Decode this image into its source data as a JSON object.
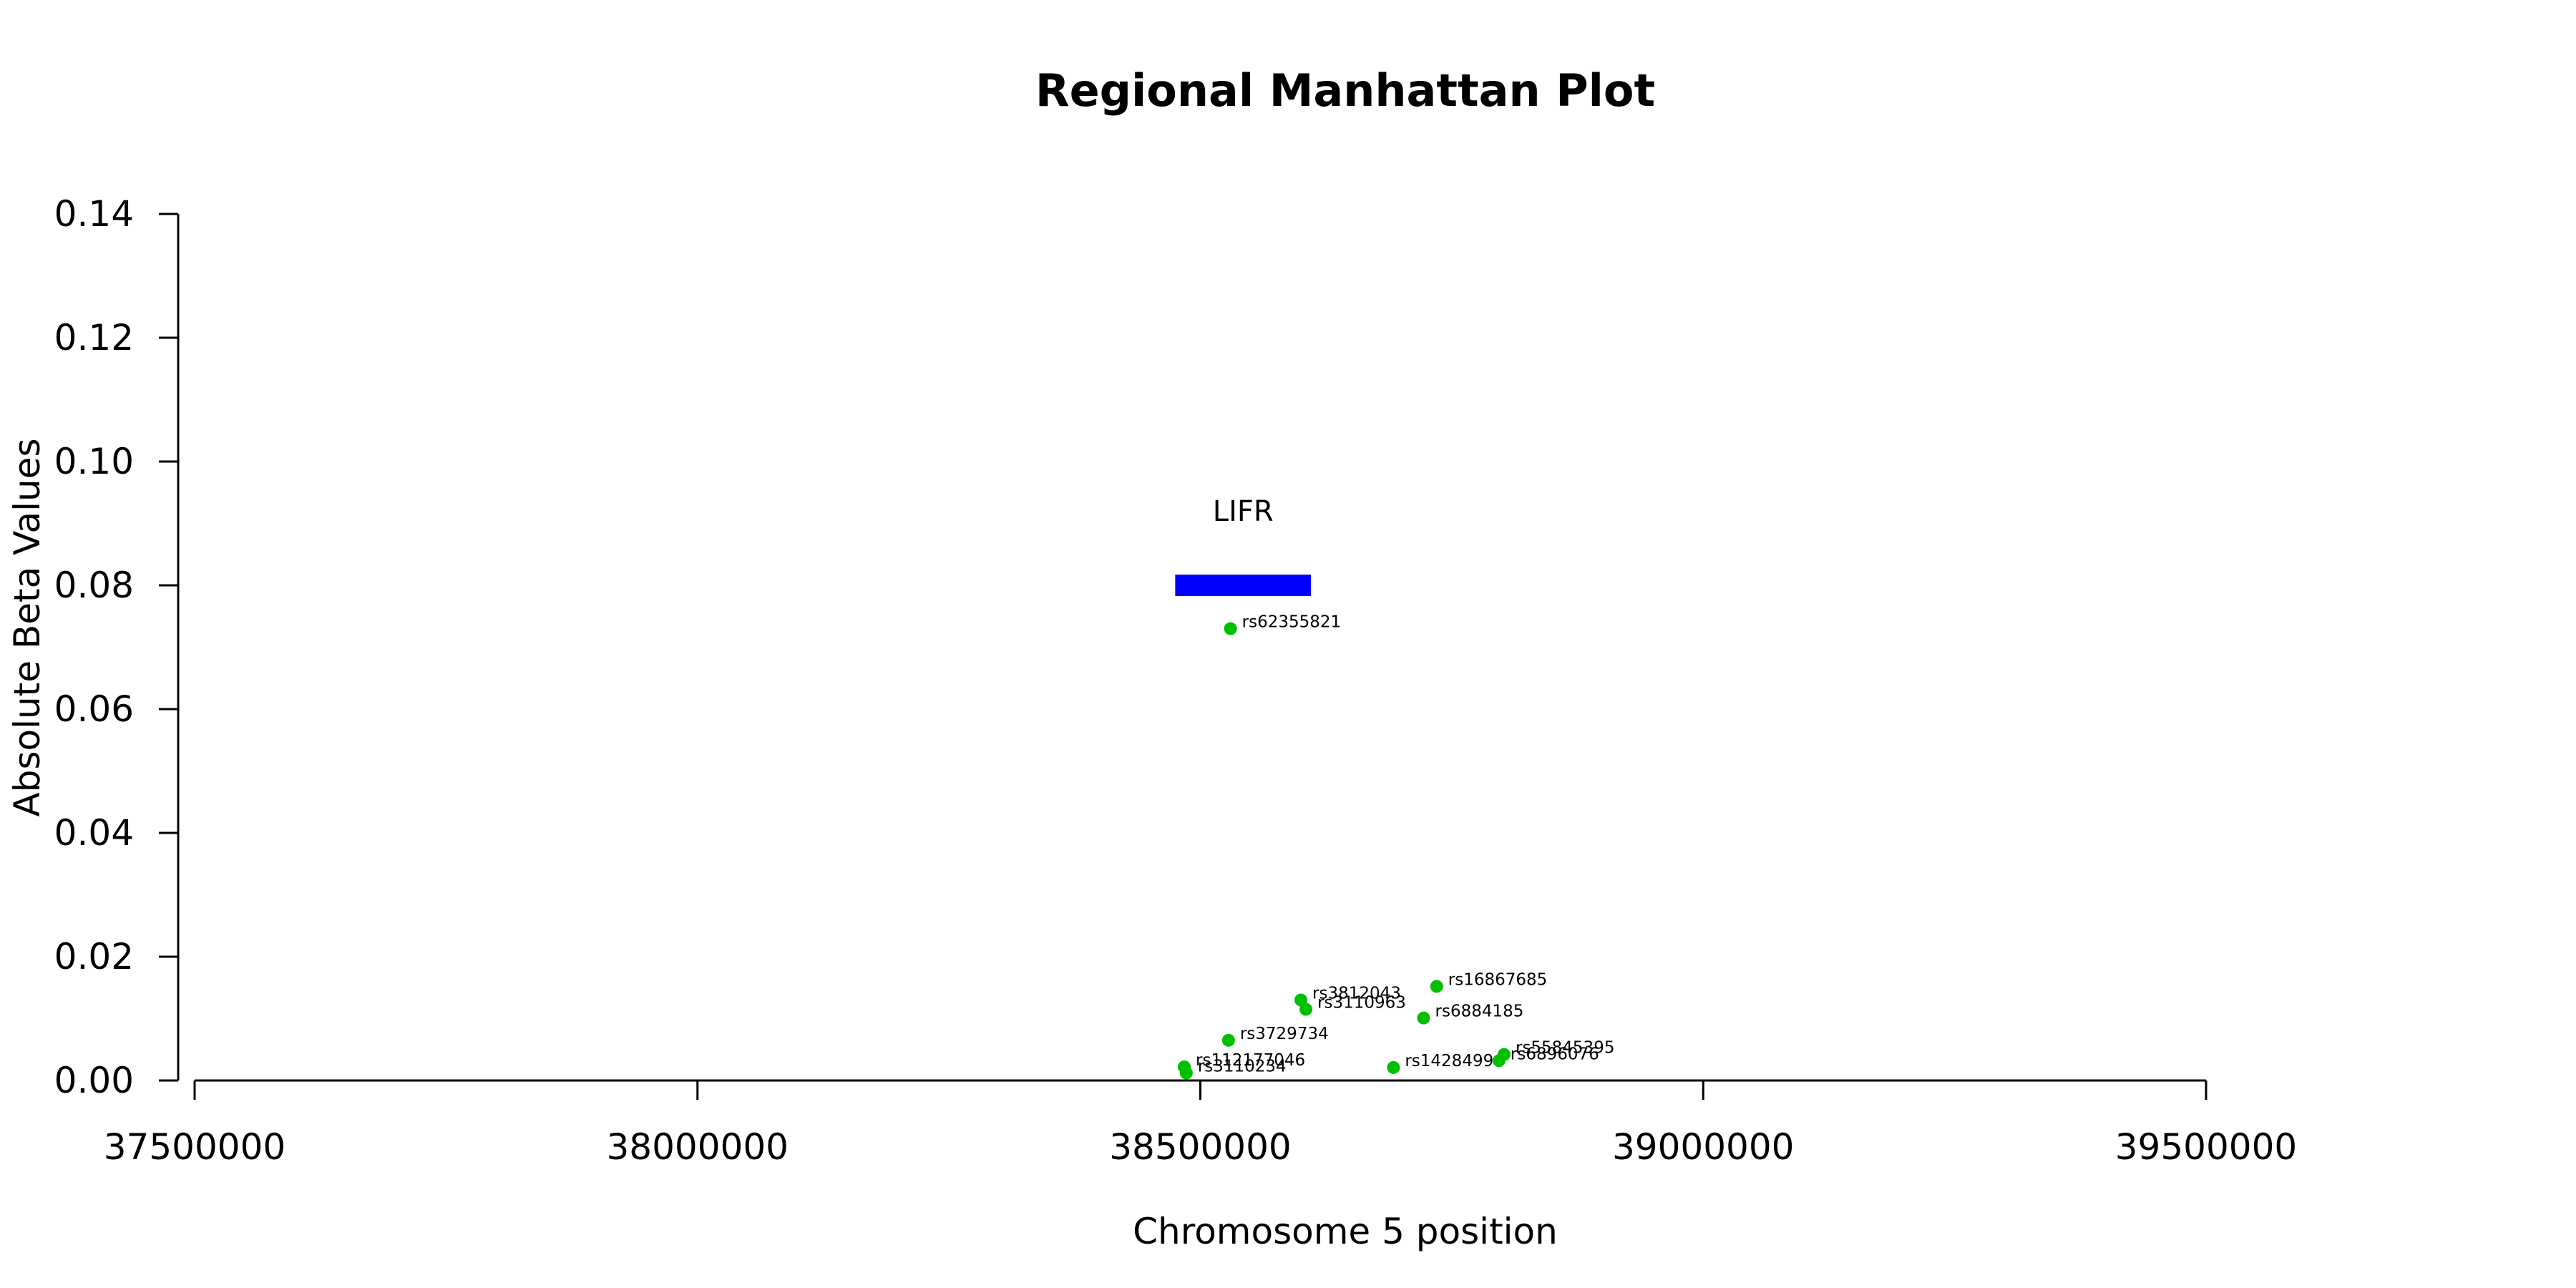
{
  "chart_data": {
    "type": "scatter",
    "title": "Regional Manhattan Plot",
    "xlabel": "Chromosome 5 position",
    "ylabel": "Absolute Beta Values",
    "xlim": [
      37500000,
      39500000
    ],
    "ylim": [
      0,
      0.14
    ],
    "x_ticks": [
      37500000,
      38000000,
      38500000,
      39000000,
      39500000
    ],
    "x_tick_labels": [
      "37500000",
      "38000000",
      "38500000",
      "39000000",
      "39500000"
    ],
    "y_ticks": [
      0,
      0.02,
      0.04,
      0.06,
      0.08,
      0.1,
      0.12,
      0.14
    ],
    "y_tick_labels": [
      "0.00",
      "0.02",
      "0.04",
      "0.06",
      "0.08",
      "0.10",
      "0.12",
      "0.14"
    ],
    "grid": false,
    "point_color": "#00C000",
    "gene_color": "#0000FF",
    "genes": [
      {
        "name": "LIFR",
        "start": 38475000,
        "end": 38610000,
        "y": 0.08
      }
    ],
    "points": [
      {
        "id": "rs62355821",
        "x": 38530000,
        "y": 0.073
      },
      {
        "id": "rs16867685",
        "x": 38735000,
        "y": 0.0152
      },
      {
        "id": "rs3812043",
        "x": 38600000,
        "y": 0.013
      },
      {
        "id": "rs3110963",
        "x": 38605000,
        "y": 0.0115
      },
      {
        "id": "rs6884185",
        "x": 38722000,
        "y": 0.0101
      },
      {
        "id": "rs3729734",
        "x": 38528000,
        "y": 0.0065
      },
      {
        "id": "rs55845395",
        "x": 38802000,
        "y": 0.0042
      },
      {
        "id": "rs6896076",
        "x": 38797000,
        "y": 0.0032
      },
      {
        "id": "rs112177046",
        "x": 38484000,
        "y": 0.0022
      },
      {
        "id": "rs1428499",
        "x": 38692000,
        "y": 0.0021
      },
      {
        "id": "rs3110234",
        "x": 38486000,
        "y": 0.0012
      }
    ]
  }
}
